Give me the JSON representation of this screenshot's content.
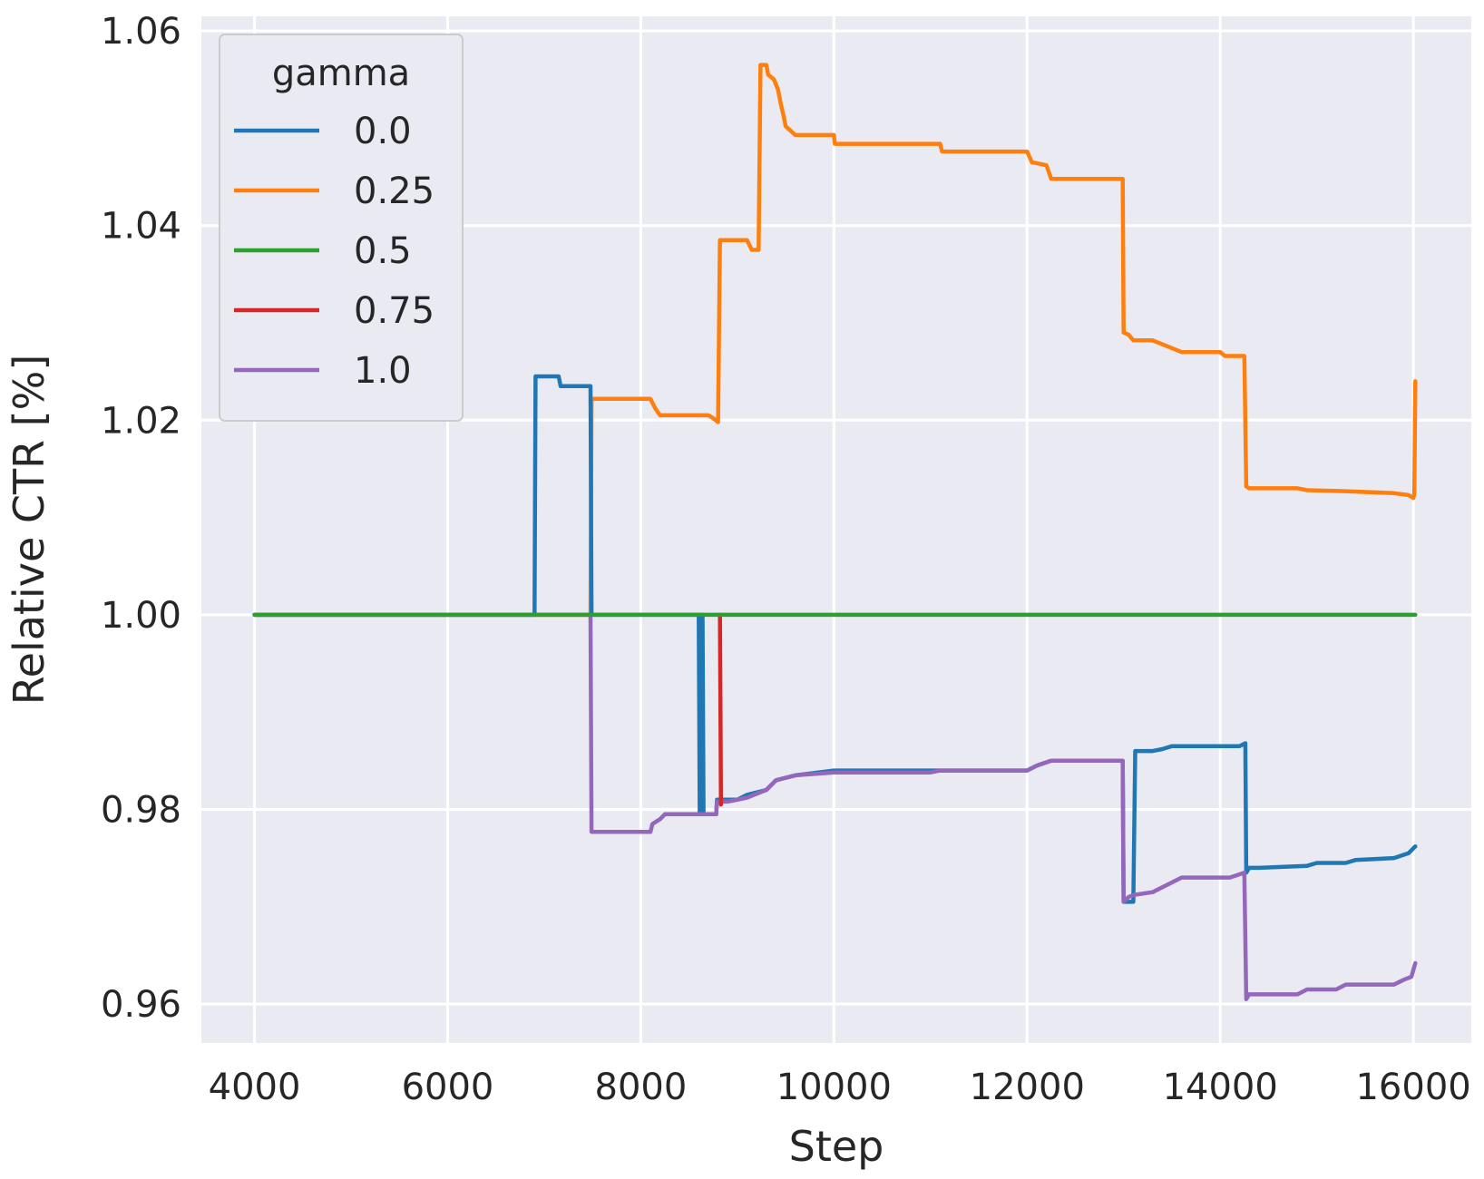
{
  "chart_data": {
    "type": "line",
    "xlabel": "Step",
    "ylabel": "Relative CTR [%]",
    "xlim": [
      3450,
      16600
    ],
    "ylim": [
      0.956,
      1.0615
    ],
    "xticks": [
      4000,
      6000,
      8000,
      10000,
      12000,
      14000,
      16000
    ],
    "yticks": [
      0.96,
      0.98,
      1.0,
      1.02,
      1.04,
      1.06
    ],
    "ytick_labels": [
      "0.96",
      "0.98",
      "1.00",
      "1.02",
      "1.04",
      "1.06"
    ],
    "grid": true,
    "background": "#eaeaf2",
    "legend": {
      "title": "gamma",
      "position": "top-left"
    },
    "series": [
      {
        "name": "0.0",
        "color": "#1f77b4",
        "points": [
          [
            4000,
            1.0
          ],
          [
            6900,
            1.0
          ],
          [
            6910,
            1.0245
          ],
          [
            7150,
            1.0245
          ],
          [
            7170,
            1.0235
          ],
          [
            7480,
            1.0235
          ],
          [
            7490,
            1.0
          ],
          [
            8600,
            1.0
          ],
          [
            8610,
            0.9795
          ],
          [
            8620,
            1.0
          ],
          [
            8640,
            1.0
          ],
          [
            8650,
            0.9795
          ],
          [
            8780,
            0.9795
          ],
          [
            8790,
            0.981
          ],
          [
            8900,
            0.981
          ],
          [
            9000,
            0.981
          ],
          [
            9100,
            0.9815
          ],
          [
            9300,
            0.982
          ],
          [
            9400,
            0.983
          ],
          [
            9600,
            0.9835
          ],
          [
            10000,
            0.984
          ],
          [
            11000,
            0.984
          ],
          [
            12000,
            0.984
          ],
          [
            12100,
            0.9845
          ],
          [
            12250,
            0.985
          ],
          [
            12990,
            0.985
          ],
          [
            13000,
            0.9705
          ],
          [
            13100,
            0.9705
          ],
          [
            13120,
            0.986
          ],
          [
            13300,
            0.986
          ],
          [
            13400,
            0.9862
          ],
          [
            13500,
            0.9865
          ],
          [
            14200,
            0.9865
          ],
          [
            14260,
            0.9868
          ],
          [
            14270,
            0.9735
          ],
          [
            14300,
            0.974
          ],
          [
            14400,
            0.974
          ],
          [
            14900,
            0.9742
          ],
          [
            15000,
            0.9745
          ],
          [
            15300,
            0.9745
          ],
          [
            15400,
            0.9748
          ],
          [
            15800,
            0.975
          ],
          [
            15950,
            0.9755
          ],
          [
            16000,
            0.976
          ],
          [
            16020,
            0.9762
          ]
        ]
      },
      {
        "name": "0.25",
        "color": "#ff7f0e",
        "points": [
          [
            4000,
            1.0
          ],
          [
            7480,
            1.0
          ],
          [
            7490,
            1.0222
          ],
          [
            8100,
            1.0222
          ],
          [
            8150,
            1.0212
          ],
          [
            8200,
            1.0205
          ],
          [
            8300,
            1.0205
          ],
          [
            8700,
            1.0205
          ],
          [
            8750,
            1.0202
          ],
          [
            8800,
            1.0198
          ],
          [
            8820,
            1.0385
          ],
          [
            9100,
            1.0385
          ],
          [
            9150,
            1.0375
          ],
          [
            9220,
            1.0375
          ],
          [
            9240,
            1.0565
          ],
          [
            9300,
            1.0565
          ],
          [
            9320,
            1.0555
          ],
          [
            9380,
            1.055
          ],
          [
            9420,
            1.054
          ],
          [
            9450,
            1.0525
          ],
          [
            9480,
            1.0512
          ],
          [
            9500,
            1.0502
          ],
          [
            9600,
            1.0493
          ],
          [
            10000,
            1.0493
          ],
          [
            10010,
            1.0484
          ],
          [
            11100,
            1.0484
          ],
          [
            11120,
            1.0476
          ],
          [
            12000,
            1.0476
          ],
          [
            12050,
            1.0465
          ],
          [
            12200,
            1.0462
          ],
          [
            12250,
            1.0448
          ],
          [
            12400,
            1.0448
          ],
          [
            12990,
            1.0448
          ],
          [
            13000,
            1.029
          ],
          [
            13050,
            1.0288
          ],
          [
            13100,
            1.0282
          ],
          [
            13300,
            1.0282
          ],
          [
            13400,
            1.0278
          ],
          [
            13600,
            1.027
          ],
          [
            14000,
            1.027
          ],
          [
            14050,
            1.0266
          ],
          [
            14250,
            1.0266
          ],
          [
            14270,
            1.0132
          ],
          [
            14300,
            1.013
          ],
          [
            14800,
            1.013
          ],
          [
            14900,
            1.0128
          ],
          [
            15300,
            1.0127
          ],
          [
            15800,
            1.0125
          ],
          [
            15950,
            1.0123
          ],
          [
            16000,
            1.012
          ],
          [
            16010,
            1.0125
          ],
          [
            16020,
            1.024
          ]
        ]
      },
      {
        "name": "0.5",
        "color": "#2ca02c",
        "points": [
          [
            4000,
            1.0
          ],
          [
            16020,
            1.0
          ]
        ]
      },
      {
        "name": "0.75",
        "color": "#d62728",
        "points": [
          [
            8800,
            1.0
          ],
          [
            8820,
            1.0
          ],
          [
            8830,
            0.9805
          ]
        ]
      },
      {
        "name": "1.0",
        "color": "#9467bd",
        "points": [
          [
            4000,
            1.0
          ],
          [
            7480,
            1.0
          ],
          [
            7490,
            0.9777
          ],
          [
            8100,
            0.9777
          ],
          [
            8120,
            0.9785
          ],
          [
            8200,
            0.979
          ],
          [
            8250,
            0.9795
          ],
          [
            8700,
            0.9795
          ],
          [
            8780,
            0.9795
          ],
          [
            8790,
            0.9808
          ],
          [
            8900,
            0.9808
          ],
          [
            9000,
            0.981
          ],
          [
            9100,
            0.9812
          ],
          [
            9300,
            0.982
          ],
          [
            9400,
            0.983
          ],
          [
            9600,
            0.9835
          ],
          [
            10000,
            0.9838
          ],
          [
            11000,
            0.9838
          ],
          [
            11100,
            0.984
          ],
          [
            12000,
            0.984
          ],
          [
            12100,
            0.9845
          ],
          [
            12250,
            0.985
          ],
          [
            12990,
            0.985
          ],
          [
            13000,
            0.9705
          ],
          [
            13050,
            0.971
          ],
          [
            13100,
            0.9712
          ],
          [
            13300,
            0.9715
          ],
          [
            13500,
            0.9725
          ],
          [
            13600,
            0.973
          ],
          [
            14100,
            0.973
          ],
          [
            14250,
            0.9735
          ],
          [
            14270,
            0.9605
          ],
          [
            14300,
            0.961
          ],
          [
            14800,
            0.961
          ],
          [
            14900,
            0.9615
          ],
          [
            15200,
            0.9615
          ],
          [
            15300,
            0.962
          ],
          [
            15800,
            0.962
          ],
          [
            15900,
            0.9625
          ],
          [
            15980,
            0.9628
          ],
          [
            16000,
            0.9635
          ],
          [
            16020,
            0.9642
          ]
        ]
      }
    ]
  }
}
